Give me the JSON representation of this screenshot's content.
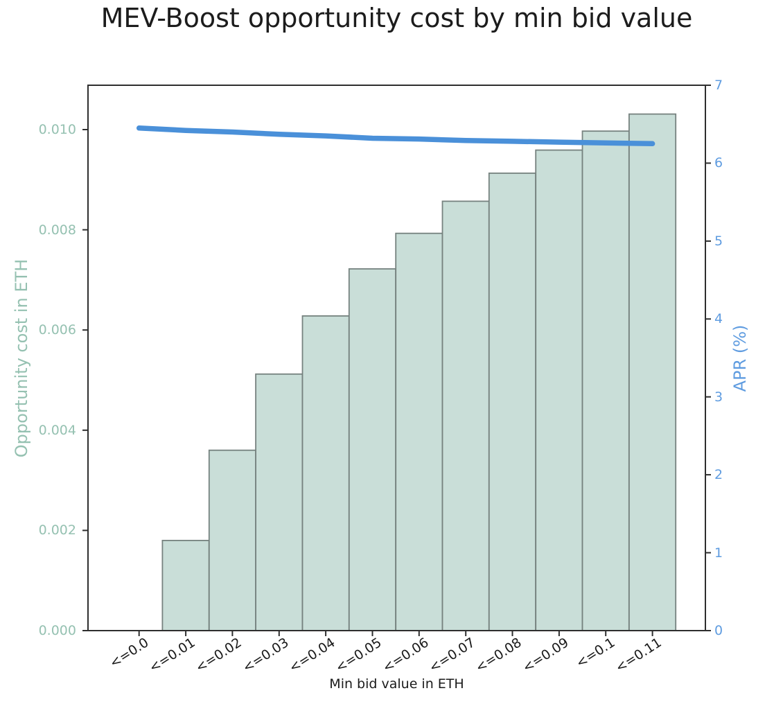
{
  "chart_data": {
    "type": "bar",
    "title": "MEV-Boost opportunity cost by min bid value",
    "xlabel": "Min bid value in ETH",
    "ylabel_left": "Opportunity cost in ETH",
    "ylabel_right": "APR (%)",
    "categories": [
      "<=0.0",
      "<=0.01",
      "<=0.02",
      "<=0.03",
      "<=0.04",
      "<=0.05",
      "<=0.06",
      "<=0.07",
      "<=0.08",
      "<=0.09",
      "<=0.1",
      "<=0.11"
    ],
    "series": [
      {
        "name": "Opportunity cost in ETH",
        "type": "bar",
        "axis": "left",
        "values": [
          0.0,
          0.0018,
          0.0036,
          0.00512,
          0.00628,
          0.00722,
          0.00793,
          0.00857,
          0.00913,
          0.00959,
          0.00997,
          0.01031
        ]
      },
      {
        "name": "APR (%)",
        "type": "line",
        "axis": "right",
        "values": [
          6.45,
          6.42,
          6.4,
          6.37,
          6.35,
          6.32,
          6.31,
          6.29,
          6.28,
          6.27,
          6.26,
          6.25
        ]
      }
    ],
    "left_ticks": [
      "0.000",
      "0.002",
      "0.004",
      "0.006",
      "0.008",
      "0.010"
    ],
    "left_tick_values": [
      0,
      0.002,
      0.004,
      0.006,
      0.008,
      0.01
    ],
    "right_ticks": [
      "0",
      "1",
      "2",
      "3",
      "4",
      "5",
      "6",
      "7"
    ],
    "right_tick_values": [
      0,
      1,
      2,
      3,
      4,
      5,
      6,
      7
    ],
    "ylim_left": [
      0,
      0.010885
    ],
    "ylim_right": [
      0,
      7
    ],
    "xlim": [
      -1.095,
      12.135
    ],
    "grid": false,
    "legend": null,
    "colors": {
      "bar_fill": "#c9ded8",
      "bar_edge": "#76827f",
      "line": "#4a90d9",
      "left_axis_text": "#95c1b1",
      "right_axis_text": "#5f9ce0",
      "spine": "#2e2e2e",
      "x_tick_text": "#1a1a1a",
      "title_text": "#1c1c1c"
    }
  }
}
